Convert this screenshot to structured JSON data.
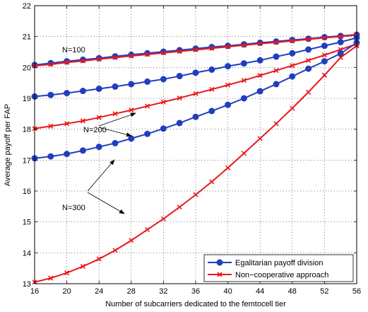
{
  "chart_data": {
    "type": "line",
    "xlabel": "Number of subcarriers dedicated to the femtocell tier",
    "ylabel": "Average payoff per FAP",
    "xlim": [
      16,
      56
    ],
    "ylim": [
      13,
      22
    ],
    "xticks": [
      16,
      20,
      24,
      28,
      32,
      36,
      40,
      44,
      48,
      52,
      56
    ],
    "yticks": [
      13,
      14,
      15,
      16,
      17,
      18,
      19,
      20,
      21,
      22
    ],
    "grid": "dotted",
    "legend_position": "bottom-right",
    "legend": [
      {
        "label": "Egalitarian payoff division",
        "color": "#1f3fbf",
        "marker": "circle"
      },
      {
        "label": "Non−cooperative approach",
        "color": "#e8181c",
        "marker": "x"
      }
    ],
    "annotations": [
      {
        "text": "N=100"
      },
      {
        "text": "N=200"
      },
      {
        "text": "N=300"
      }
    ],
    "x": [
      16,
      18,
      20,
      22,
      24,
      26,
      28,
      30,
      32,
      34,
      36,
      38,
      40,
      42,
      44,
      46,
      48,
      50,
      52,
      54,
      56
    ],
    "series": [
      {
        "group": "N=100",
        "style": "egalitarian",
        "color": "#1f3fbf",
        "marker": "circle",
        "values": [
          20.08,
          20.14,
          20.2,
          20.25,
          20.3,
          20.36,
          20.41,
          20.46,
          20.51,
          20.56,
          20.61,
          20.66,
          20.7,
          20.75,
          20.8,
          20.84,
          20.89,
          20.93,
          20.98,
          21.02,
          21.06
        ]
      },
      {
        "group": "N=100",
        "style": "noncooperative",
        "color": "#e8181c",
        "marker": "x",
        "values": [
          20.05,
          20.1,
          20.16,
          20.21,
          20.27,
          20.32,
          20.37,
          20.42,
          20.47,
          20.52,
          20.57,
          20.62,
          20.67,
          20.72,
          20.77,
          20.81,
          20.86,
          20.91,
          20.96,
          21.0,
          21.05
        ]
      },
      {
        "group": "N=200",
        "style": "egalitarian",
        "color": "#1f3fbf",
        "marker": "circle",
        "values": [
          19.06,
          19.11,
          19.17,
          19.24,
          19.31,
          19.38,
          19.46,
          19.54,
          19.62,
          19.72,
          19.83,
          19.93,
          20.04,
          20.13,
          20.23,
          20.35,
          20.46,
          20.58,
          20.7,
          20.82,
          20.96
        ]
      },
      {
        "group": "N=200",
        "style": "noncooperative",
        "color": "#e8181c",
        "marker": "x",
        "values": [
          18.02,
          18.1,
          18.18,
          18.27,
          18.38,
          18.5,
          18.62,
          18.75,
          18.88,
          19.01,
          19.15,
          19.29,
          19.43,
          19.58,
          19.74,
          19.9,
          20.06,
          20.23,
          20.4,
          20.58,
          20.76
        ]
      },
      {
        "group": "N=300",
        "style": "egalitarian",
        "color": "#1f3fbf",
        "marker": "circle",
        "values": [
          17.06,
          17.12,
          17.2,
          17.31,
          17.43,
          17.55,
          17.7,
          17.85,
          18.02,
          18.2,
          18.4,
          18.59,
          18.79,
          19.0,
          19.23,
          19.46,
          19.71,
          19.96,
          20.2,
          20.45,
          20.8
        ]
      },
      {
        "group": "N=300",
        "style": "noncooperative",
        "color": "#e8181c",
        "marker": "x",
        "values": [
          13.05,
          13.18,
          13.35,
          13.56,
          13.8,
          14.08,
          14.4,
          14.75,
          15.1,
          15.48,
          15.88,
          16.3,
          16.75,
          17.22,
          17.7,
          18.18,
          18.68,
          19.2,
          19.75,
          20.32,
          20.7
        ]
      }
    ]
  }
}
